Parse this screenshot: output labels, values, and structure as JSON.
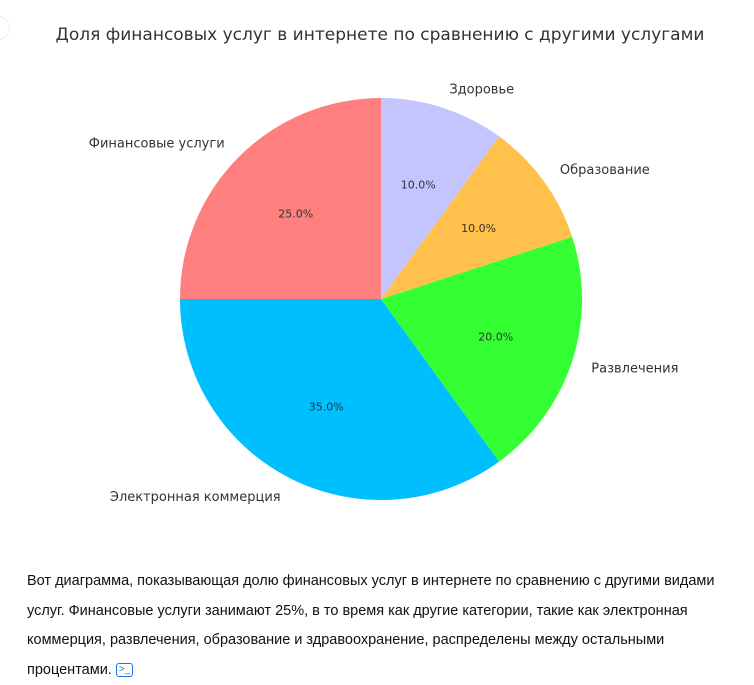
{
  "chart_data": {
    "type": "pie",
    "title": "Доля финансовых услуг в интернете по сравнению с другими услугами",
    "categories": [
      "Финансовые услуги",
      "Электронная коммерция",
      "Развлечения",
      "Образование",
      "Здоровье"
    ],
    "values": [
      25,
      35,
      20,
      10,
      10
    ],
    "value_labels": [
      "25.0%",
      "35.0%",
      "20.0%",
      "10.0%",
      "10.0%"
    ],
    "colors": [
      "#ff7f7f",
      "#00bfff",
      "#33ff33",
      "#ffc04c",
      "#c4c4ff"
    ],
    "start_angle": 90,
    "direction": "counterclockwise"
  },
  "message": {
    "text": "Вот диаграмма, показывающая долю финансовых услуг в интернете по сравнению с другими видами услуг. Финансовые услуги занимают 25%, в то время как другие категории, такие как электронная коммерция, развлечения, образование и здравоохранение, распределены между остальными процентами.",
    "source_icon": "code-interpreter-icon",
    "source_label": "[>-]"
  }
}
